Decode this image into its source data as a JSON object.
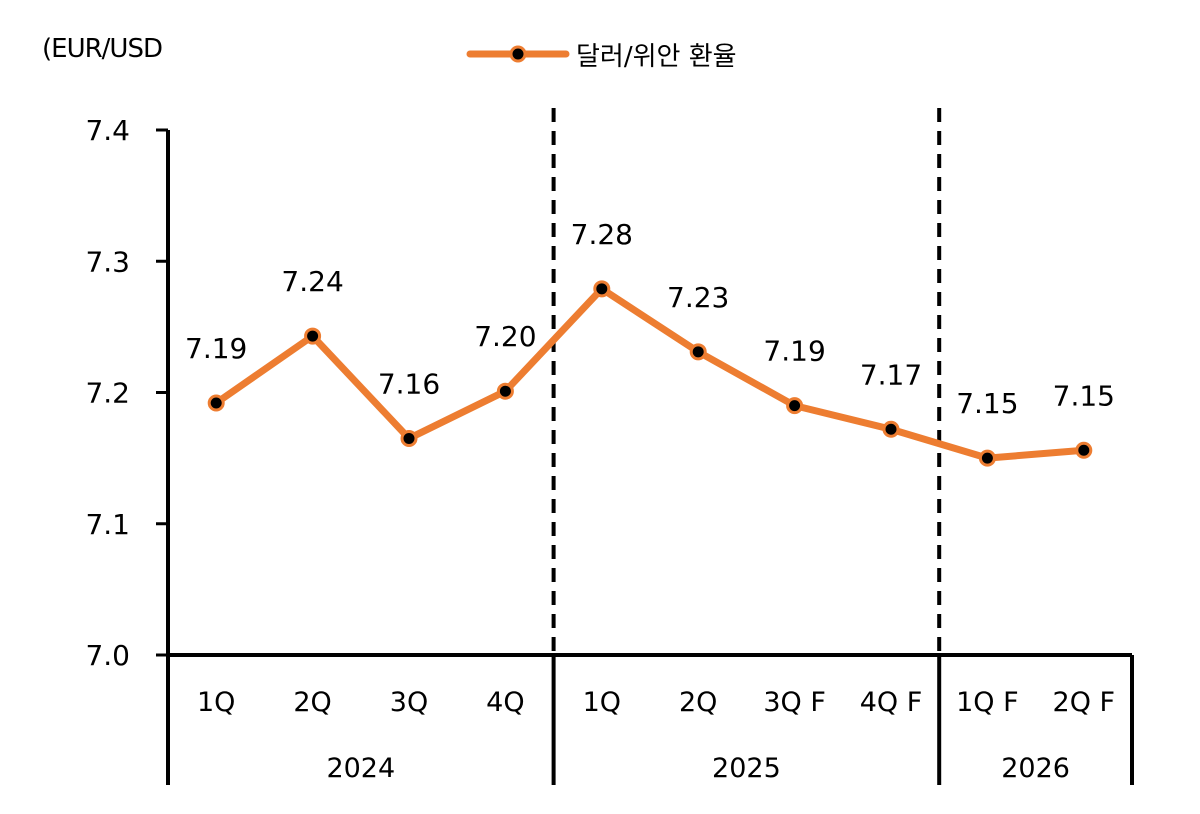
{
  "unit_label": "(EUR/USD",
  "legend_label": "달러/위안 환율",
  "colors": {
    "line": "#ED7D31",
    "marker": "#000000",
    "axis": "#000000"
  },
  "chart_data": {
    "type": "line",
    "categories": [
      "1Q",
      "2Q",
      "3Q",
      "4Q",
      "1Q",
      "2Q",
      "3Q F",
      "4Q F",
      "1Q F",
      "2Q F"
    ],
    "groups": [
      {
        "label": "2024",
        "count": 4
      },
      {
        "label": "2025",
        "count": 4
      },
      {
        "label": "2026",
        "count": 2
      }
    ],
    "series": [
      {
        "name": "달러/위안 환율",
        "values": [
          7.19,
          7.24,
          7.16,
          7.2,
          7.28,
          7.23,
          7.19,
          7.17,
          7.15,
          7.15
        ],
        "labels": [
          "7.19",
          "7.24",
          "7.16",
          "7.20",
          "7.28",
          "7.23",
          "7.19",
          "7.17",
          "7.15",
          "7.15"
        ],
        "plot_values": [
          7.192,
          7.243,
          7.165,
          7.201,
          7.279,
          7.231,
          7.19,
          7.172,
          7.15,
          7.156
        ]
      }
    ],
    "yticks": [
      "7.0",
      "7.1",
      "7.2",
      "7.3",
      "7.4"
    ],
    "ylim": [
      7.0,
      7.4
    ],
    "legend": "top-center",
    "grid": false
  }
}
